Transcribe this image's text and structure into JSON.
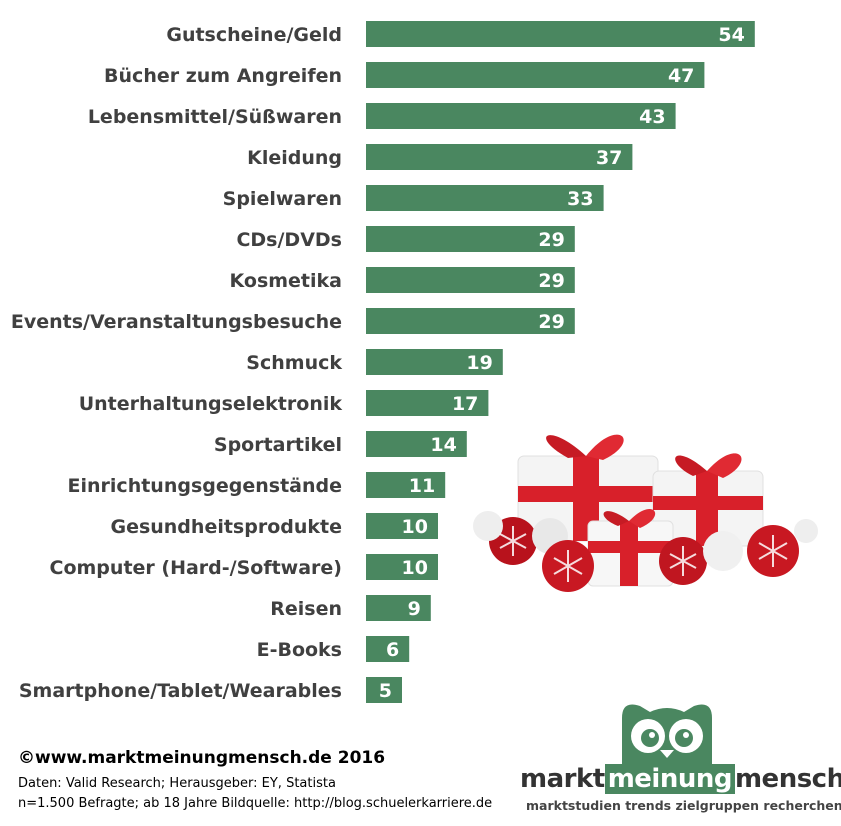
{
  "chart_data": {
    "type": "bar",
    "orientation": "horizontal",
    "title": "",
    "xlabel": "",
    "ylabel": "",
    "categories": [
      "Gutscheine/Geld",
      "Bücher zum Angreifen",
      "Lebensmittel/Süßwaren",
      "Kleidung",
      "Spielwaren",
      "CDs/DVDs",
      "Kosmetika",
      "Events/Veranstaltungsbesuche",
      "Schmuck",
      "Unterhaltungselektronik",
      "Sportartikel",
      "Einrichtungsgegenstände",
      "Gesundheitsprodukte",
      "Computer (Hard-/Software)",
      "Reisen",
      "E-Books",
      "Smartphone/Tablet/Wearables"
    ],
    "values": [
      54,
      47,
      43,
      37,
      33,
      29,
      29,
      29,
      19,
      17,
      14,
      11,
      10,
      10,
      9,
      6,
      5
    ],
    "xlim": [
      0,
      60
    ],
    "grid": false,
    "legend": "none",
    "bar_color": "#4a8760"
  },
  "footer": {
    "copyright": "©www.marktmeinungmensch.de 2016",
    "source_line1": "Daten: Valid Research;  Herausgeber: EY, Statista",
    "source_line2": "n=1.500 Befragte; ab 18 Jahre Bildquelle: http://blog.schuelerkarriere.de"
  },
  "logo": {
    "word1": "markt",
    "word2": "meinung",
    "word3": "mensch",
    "tagline": "marktstudien trends zielgruppen recherchen",
    "color": "#4a8760"
  },
  "image": {
    "icon": "christmas-gifts-illustration"
  }
}
